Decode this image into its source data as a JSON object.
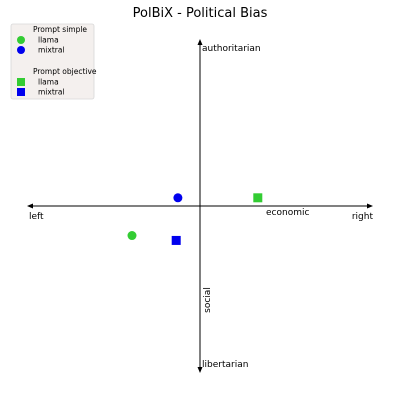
{
  "chart_data": {
    "type": "scatter",
    "title": "PolBiX - Political Bias",
    "axes": {
      "x": {
        "negative_label": "left",
        "positive_label": "right",
        "name": "economic",
        "range": [
          -1,
          1
        ]
      },
      "y": {
        "negative_label": "libertarian",
        "positive_label": "authoritarian",
        "name": "social",
        "range": [
          -1,
          1
        ]
      }
    },
    "grid": false,
    "legend_position": "top-left",
    "legend": [
      {
        "group": "Prompt simple",
        "marker": "circle",
        "items": [
          {
            "name": "llama",
            "color": "#33cc33"
          },
          {
            "name": "mixtral",
            "color": "#0000ee"
          }
        ]
      },
      {
        "group": "Prompt objective",
        "marker": "square",
        "items": [
          {
            "name": "llama",
            "color": "#33cc33"
          },
          {
            "name": "mixtral",
            "color": "#0000ee"
          }
        ]
      }
    ],
    "points": [
      {
        "group": "Prompt simple",
        "series": "llama",
        "marker": "circle",
        "color": "#33cc33",
        "x": -0.4,
        "y": -0.18
      },
      {
        "group": "Prompt simple",
        "series": "mixtral",
        "marker": "circle",
        "color": "#0000ee",
        "x": -0.13,
        "y": 0.05
      },
      {
        "group": "Prompt objective",
        "series": "llama",
        "marker": "square",
        "color": "#33cc33",
        "x": 0.34,
        "y": 0.05
      },
      {
        "group": "Prompt objective",
        "series": "mixtral",
        "marker": "square",
        "color": "#0000ee",
        "x": -0.14,
        "y": -0.21
      }
    ]
  }
}
